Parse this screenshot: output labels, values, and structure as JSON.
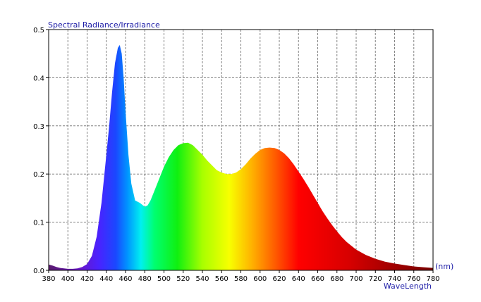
{
  "chart_data": {
    "type": "area",
    "title": "Spectral Radiance/Irradiance",
    "xlabel": "WaveLength",
    "xunit": "(nm)",
    "xlim": [
      380,
      780
    ],
    "ylim": [
      0,
      0.5
    ],
    "xticks": [
      "380",
      "400",
      "420",
      "440",
      "460",
      "480",
      "500",
      "520",
      "540",
      "560",
      "580",
      "600",
      "620",
      "640",
      "660",
      "680",
      "700",
      "720",
      "740",
      "760",
      "780"
    ],
    "yticks": [
      "0.0",
      "0.1",
      "0.2",
      "0.3",
      "0.4",
      "0.5"
    ],
    "grid": true,
    "fill": "spectral",
    "series": [
      {
        "x": [
          380,
          384,
          388,
          392,
          396,
          400,
          405,
          410,
          415,
          420,
          425,
          430,
          435,
          440,
          443,
          446,
          449,
          452,
          454,
          456,
          458,
          460,
          463,
          466,
          470,
          475,
          480,
          483,
          486,
          490,
          495,
          500,
          505,
          510,
          515,
          520,
          525,
          530,
          535,
          540,
          545,
          550,
          555,
          560,
          565,
          570,
          575,
          580,
          585,
          590,
          595,
          600,
          605,
          610,
          615,
          620,
          625,
          630,
          635,
          640,
          645,
          650,
          655,
          660,
          665,
          670,
          675,
          680,
          685,
          690,
          700,
          710,
          720,
          730,
          740,
          750,
          760,
          770,
          780
        ],
        "values": [
          0.012,
          0.01,
          0.007,
          0.005,
          0.004,
          0.003,
          0.003,
          0.004,
          0.007,
          0.013,
          0.03,
          0.07,
          0.14,
          0.24,
          0.3,
          0.37,
          0.43,
          0.462,
          0.468,
          0.45,
          0.4,
          0.33,
          0.24,
          0.18,
          0.145,
          0.14,
          0.132,
          0.135,
          0.145,
          0.165,
          0.19,
          0.215,
          0.235,
          0.25,
          0.26,
          0.264,
          0.265,
          0.26,
          0.25,
          0.24,
          0.228,
          0.218,
          0.208,
          0.203,
          0.2,
          0.2,
          0.203,
          0.21,
          0.22,
          0.232,
          0.242,
          0.25,
          0.254,
          0.255,
          0.254,
          0.25,
          0.243,
          0.233,
          0.22,
          0.205,
          0.19,
          0.174,
          0.157,
          0.14,
          0.123,
          0.108,
          0.094,
          0.081,
          0.069,
          0.059,
          0.043,
          0.032,
          0.024,
          0.018,
          0.014,
          0.011,
          0.008,
          0.0065,
          0.005
        ]
      }
    ]
  }
}
